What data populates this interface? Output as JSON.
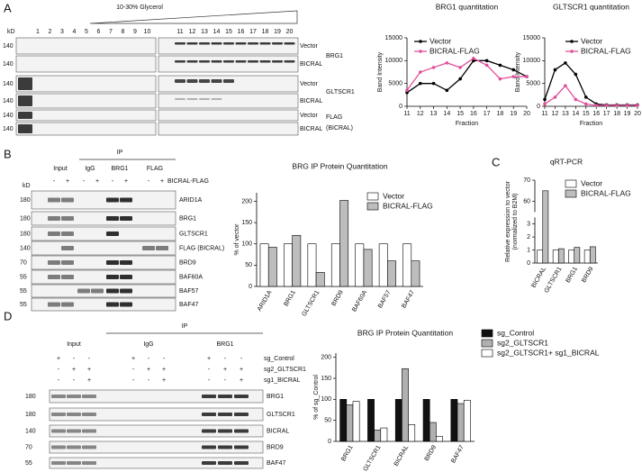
{
  "panel_labels": [
    "A",
    "B",
    "C",
    "D"
  ],
  "panel_a": {
    "gradient_label": "10-30% Glycerol",
    "kd": "kD",
    "lanes": [
      "1",
      "2",
      "3",
      "4",
      "5",
      "6",
      "7",
      "8",
      "9",
      "10",
      "11",
      "12",
      "13",
      "14",
      "15",
      "16",
      "17",
      "18",
      "19",
      "20"
    ],
    "rows": [
      {
        "condition": "Vector",
        "mw": "140"
      },
      {
        "condition": "BICRAL",
        "mw": "140"
      },
      {
        "condition": "Vector",
        "mw": "140"
      },
      {
        "condition": "BICRAL",
        "mw": "140"
      },
      {
        "condition": "Vector",
        "mw": "140"
      },
      {
        "condition": "BICRAL",
        "mw": "140"
      }
    ],
    "proteins": [
      "BRG1",
      "GLTSCR1",
      "FLAG",
      "(BICRAL)"
    ]
  },
  "panel_b": {
    "ip_label": "IP",
    "groups": [
      "Input",
      "IgG",
      "BRG1",
      "FLAG"
    ],
    "signs": [
      "-",
      "+",
      "-",
      "+",
      "-",
      "+",
      "-",
      "+"
    ],
    "sign_label": "BICRAL-FLAG",
    "kd": "kD",
    "rows": [
      {
        "protein": "ARID1A",
        "mw": "180"
      },
      {
        "protein": "BRG1",
        "mw": "180"
      },
      {
        "protein": "GLTSCR1",
        "mw": "180"
      },
      {
        "protein": "FLAG (BICRAL)",
        "mw": "140"
      },
      {
        "protein": "BRD9",
        "mw": "70"
      },
      {
        "protein": "BAF60A",
        "mw": "55"
      },
      {
        "protein": "BAF57",
        "mw": "55"
      },
      {
        "protein": "BAF47",
        "mw": "55"
      }
    ]
  },
  "panel_d": {
    "ip_label": "IP",
    "groups": [
      "Input",
      "IgG",
      "BRG1"
    ],
    "sign_rows": [
      {
        "label": "sg_Control",
        "signs": [
          "+",
          "-",
          "-",
          "+",
          "-",
          "-",
          "+",
          "-",
          "-"
        ]
      },
      {
        "label": "sg2_GLTSCR1",
        "signs": [
          "-",
          "+",
          "+",
          "-",
          "+",
          "+",
          "-",
          "+",
          "+"
        ]
      },
      {
        "label": "sg1_BICRAL",
        "signs": [
          "-",
          "-",
          "+",
          "-",
          "-",
          "+",
          "-",
          "-",
          "+"
        ]
      }
    ],
    "rows": [
      {
        "protein": "BRG1",
        "mw": "180"
      },
      {
        "protein": "GLTSCR1",
        "mw": "180"
      },
      {
        "protein": "BICRAL",
        "mw": "140"
      },
      {
        "protein": "BRD9",
        "mw": "70"
      },
      {
        "protein": "BAF47",
        "mw": "55"
      }
    ]
  },
  "chart_data": [
    {
      "type": "line",
      "title": "BRG1 quantitation",
      "x_label": "Fraction",
      "y_label": [
        "Band Intensity"
      ],
      "x": [
        11,
        12,
        13,
        14,
        15,
        16,
        17,
        18,
        19,
        20
      ],
      "xlim": [
        11,
        20
      ],
      "xticks": [
        11,
        12,
        13,
        14,
        15,
        16,
        17,
        18,
        19,
        20
      ],
      "ylim": [
        0,
        15000
      ],
      "yticks": [
        0,
        5000,
        10000,
        15000
      ],
      "legend": "top-left",
      "series": [
        {
          "name": "Vector",
          "color": "#000000",
          "values": [
            3000,
            5000,
            5000,
            3500,
            6000,
            10000,
            10000,
            9000,
            8000,
            6500
          ]
        },
        {
          "name": "BICRAL-FLAG",
          "color": "#e0509a",
          "values": [
            3500,
            7500,
            8500,
            9500,
            8500,
            10500,
            9000,
            6000,
            6500,
            6500
          ]
        }
      ]
    },
    {
      "type": "line",
      "title": "GLTSCR1 quantitation",
      "x_label": "Fraction",
      "y_label": [
        "Band Intensity"
      ],
      "x": [
        11,
        12,
        13,
        14,
        15,
        16,
        17,
        18,
        19,
        20
      ],
      "xlim": [
        11,
        20
      ],
      "xticks": [
        11,
        12,
        13,
        14,
        15,
        16,
        17,
        18,
        19,
        20
      ],
      "ylim": [
        0,
        15000
      ],
      "yticks": [
        0,
        5000,
        10000,
        15000
      ],
      "legend": "top-right",
      "series": [
        {
          "name": "Vector",
          "color": "#000000",
          "values": [
            1500,
            8000,
            9500,
            7000,
            2000,
            500,
            300,
            300,
            300,
            300
          ]
        },
        {
          "name": "BICRAL-FLAG",
          "color": "#e0509a",
          "values": [
            500,
            2000,
            4500,
            1500,
            500,
            200,
            200,
            200,
            200,
            200
          ]
        }
      ]
    },
    {
      "type": "bar",
      "title": "BRG IP Protein Quantitation",
      "y_label": [
        "% of vector"
      ],
      "categories": [
        "ARID1A",
        "BRG1",
        "GLTSCR1",
        "BRD9",
        "BAF60A",
        "BAF57",
        "BAF47"
      ],
      "ylim": [
        0,
        220
      ],
      "yticks": [
        0,
        50,
        100,
        150,
        200
      ],
      "legend": "top-right",
      "series": [
        {
          "name": "Vector",
          "color": "#ffffff",
          "values": [
            100,
            100,
            100,
            100,
            100,
            100,
            100
          ]
        },
        {
          "name": "BICRAL-FLAG",
          "color": "#bdbdbd",
          "values": [
            92,
            120,
            33,
            202,
            87,
            60,
            60
          ]
        }
      ]
    },
    {
      "type": "bar",
      "title": "qRT-PCR",
      "y_label": [
        "Relative expression to vector",
        "(normalized to B2M)"
      ],
      "categories": [
        "BICRAL",
        "GLTSCR1",
        "BRG1",
        "BRD9"
      ],
      "ylim": [
        0,
        70
      ],
      "axis_break": [
        3.5,
        55
      ],
      "yticks": [
        0,
        1,
        2,
        3,
        60,
        70
      ],
      "legend": "top-right",
      "series": [
        {
          "name": "Vector",
          "color": "#ffffff",
          "values": [
            1,
            1,
            1,
            1
          ]
        },
        {
          "name": "BICRAL-FLAG",
          "color": "#bdbdbd",
          "values": [
            65,
            1.1,
            1.2,
            1.25
          ]
        }
      ]
    },
    {
      "type": "bar",
      "title": "BRG IP Protein Quantitation",
      "y_label": [
        "% of sg_Control"
      ],
      "categories": [
        "BRG1",
        "GLTSCR1",
        "BICRAL",
        "BRD9",
        "BAF47"
      ],
      "ylim": [
        0,
        210
      ],
      "yticks": [
        0,
        50,
        100,
        150,
        200
      ],
      "legend": "right",
      "series": [
        {
          "name": "sg_Control",
          "color": "#111111",
          "values": [
            100,
            100,
            100,
            100,
            100
          ]
        },
        {
          "name": "sg2_GLTSCR1",
          "color": "#b0b0b0",
          "values": [
            87,
            27,
            173,
            45,
            90
          ]
        },
        {
          "name": "sg2_GLTSCR1+ sg1_BICRAL",
          "color": "#ffffff",
          "values": [
            95,
            32,
            40,
            12,
            98
          ]
        }
      ]
    }
  ]
}
